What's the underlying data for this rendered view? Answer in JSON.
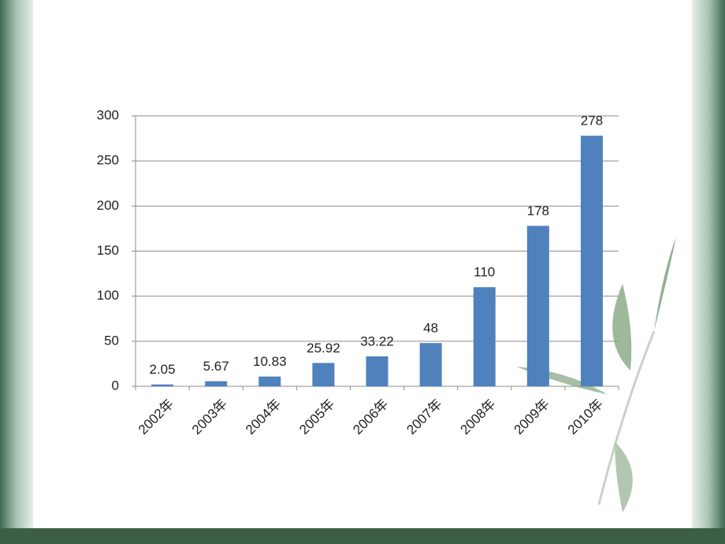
{
  "chart_data": {
    "type": "bar",
    "categories": [
      "2002年",
      "2003年",
      "2004年",
      "2005年",
      "2006年",
      "2007年",
      "2008年",
      "2009年",
      "2010年"
    ],
    "values": [
      2.05,
      5.67,
      10.83,
      25.92,
      33.22,
      48,
      110,
      178,
      278
    ],
    "color": "#4f81bd",
    "ylim": [
      0,
      300
    ],
    "yticks": [
      0,
      50,
      100,
      150,
      200,
      250,
      300
    ],
    "grid": true
  }
}
